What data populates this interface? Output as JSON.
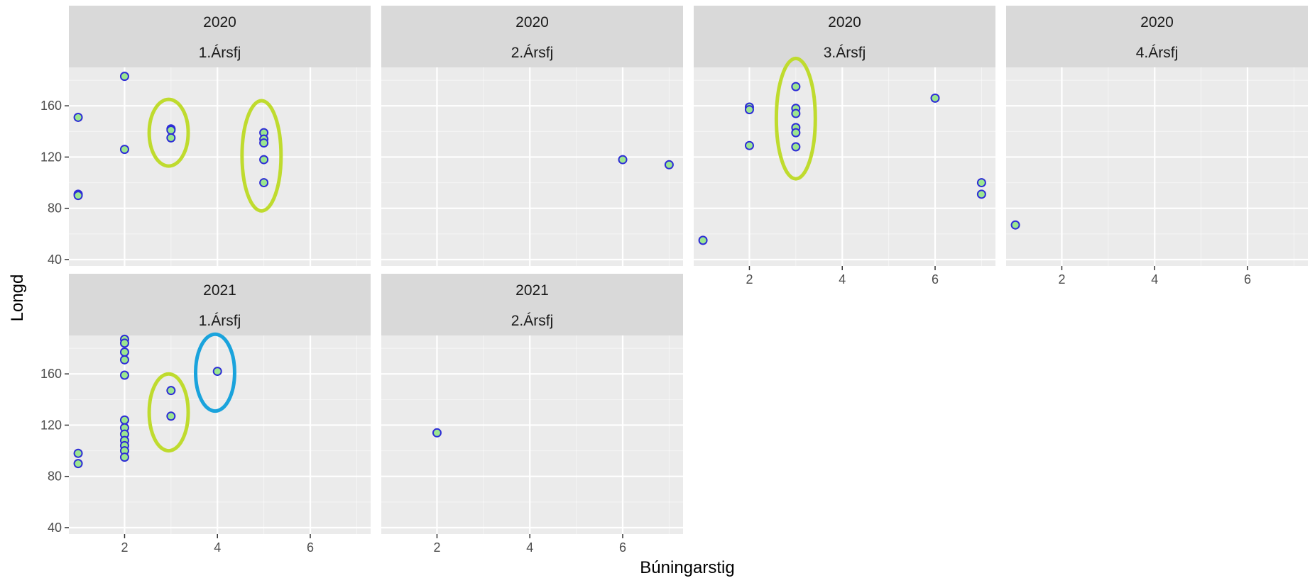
{
  "chart_data": {
    "type": "scatter",
    "xlabel": "Búningarstig",
    "ylabel": "Longd",
    "xlim": [
      0.8,
      7.3
    ],
    "ylim": [
      35,
      190
    ],
    "x_ticks": [
      2,
      4,
      6
    ],
    "y_ticks": [
      40,
      80,
      120,
      160
    ],
    "x_tick_labels": [
      "2",
      "4",
      "6"
    ],
    "y_tick_labels": [
      "40",
      "80",
      "120",
      "160"
    ],
    "grid": true,
    "colors": {
      "panel_bg": "#EBEBEB",
      "strip_bg": "#D9D9D9",
      "grid_major": "#FFFFFF",
      "point_stroke": "#2D2DD6",
      "point_fill": "#9CE68F",
      "highlight_green": "#BFDB2E",
      "highlight_blue": "#1AA3DC"
    },
    "panels": [
      {
        "year": "2020",
        "quarter": "1.Ársfj",
        "points": [
          [
            1,
            151
          ],
          [
            1,
            91
          ],
          [
            1,
            90
          ],
          [
            2,
            183
          ],
          [
            2,
            126
          ],
          [
            3,
            142
          ],
          [
            3,
            141
          ],
          [
            3,
            135
          ],
          [
            5,
            139
          ],
          [
            5,
            134
          ],
          [
            5,
            131
          ],
          [
            5,
            118
          ],
          [
            5,
            100
          ]
        ],
        "highlights": [
          {
            "color": "green",
            "cx": 2.95,
            "cy": 139,
            "rx": 0.42,
            "ry": 26
          },
          {
            "color": "green",
            "cx": 4.95,
            "cy": 121,
            "rx": 0.42,
            "ry": 43
          }
        ]
      },
      {
        "year": "2020",
        "quarter": "2.Ársfj",
        "points": [
          [
            6,
            118
          ],
          [
            7,
            114
          ]
        ],
        "highlights": []
      },
      {
        "year": "2020",
        "quarter": "3.Ársfj",
        "points": [
          [
            1,
            55
          ],
          [
            2,
            159
          ],
          [
            2,
            157
          ],
          [
            2,
            129
          ],
          [
            3,
            175
          ],
          [
            3,
            158
          ],
          [
            3,
            154
          ],
          [
            3,
            143
          ],
          [
            3,
            139
          ],
          [
            3,
            128
          ],
          [
            6,
            166
          ],
          [
            7,
            100
          ],
          [
            7,
            91
          ]
        ],
        "highlights": [
          {
            "color": "green",
            "cx": 3.0,
            "cy": 150,
            "rx": 0.42,
            "ry": 47
          }
        ]
      },
      {
        "year": "2020",
        "quarter": "4.Ársfj",
        "points": [
          [
            1,
            67
          ]
        ],
        "highlights": []
      },
      {
        "year": "2021",
        "quarter": "1.Ársfj",
        "points": [
          [
            1,
            98
          ],
          [
            1,
            90
          ],
          [
            2,
            187
          ],
          [
            2,
            184
          ],
          [
            2,
            177
          ],
          [
            2,
            171
          ],
          [
            2,
            159
          ],
          [
            2,
            124
          ],
          [
            2,
            118
          ],
          [
            2,
            113
          ],
          [
            2,
            108
          ],
          [
            2,
            104
          ],
          [
            2,
            100
          ],
          [
            2,
            95
          ],
          [
            3,
            147
          ],
          [
            3,
            127
          ],
          [
            4,
            162
          ]
        ],
        "highlights": [
          {
            "color": "green",
            "cx": 2.95,
            "cy": 130,
            "rx": 0.42,
            "ry": 30
          },
          {
            "color": "blue",
            "cx": 3.95,
            "cy": 161,
            "rx": 0.42,
            "ry": 30
          }
        ]
      },
      {
        "year": "2021",
        "quarter": "2.Ársfj",
        "points": [
          [
            2,
            114
          ]
        ],
        "highlights": []
      }
    ]
  }
}
